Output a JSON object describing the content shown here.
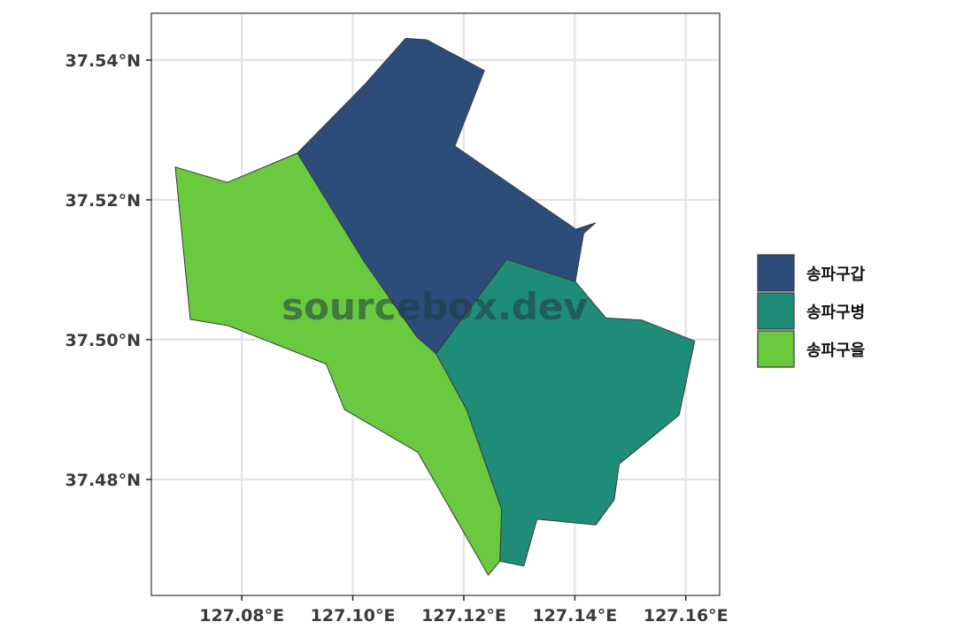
{
  "map": {
    "x_ticks": [
      {
        "value": 127.08,
        "label": "127.08°E"
      },
      {
        "value": 127.1,
        "label": "127.10°E"
      },
      {
        "value": 127.12,
        "label": "127.12°E"
      },
      {
        "value": 127.14,
        "label": "127.14°E"
      },
      {
        "value": 127.16,
        "label": "127.16°E"
      }
    ],
    "y_ticks": [
      {
        "value": 37.54,
        "label": "37.54°N"
      },
      {
        "value": 37.52,
        "label": "37.52°N"
      },
      {
        "value": 37.5,
        "label": "37.50°N"
      },
      {
        "value": 37.48,
        "label": "37.48°N"
      }
    ],
    "xlim": [
      127.0637,
      127.1661
    ],
    "ylim": [
      37.4634,
      37.5467
    ],
    "grid": true,
    "regions": [
      {
        "name": "송파구갑",
        "color": "#2c4d7a",
        "coords": [
          [
            127.09,
            37.5267
          ],
          [
            127.102,
            37.5364
          ],
          [
            127.1095,
            37.5431
          ],
          [
            127.1133,
            37.5429
          ],
          [
            127.1237,
            37.5385
          ],
          [
            127.1184,
            37.5277
          ],
          [
            127.1402,
            37.5158
          ],
          [
            127.1437,
            37.5167
          ],
          [
            127.1416,
            37.5152
          ],
          [
            127.1401,
            37.5083
          ],
          [
            127.1277,
            37.5115
          ],
          [
            127.115,
            37.498
          ],
          [
            127.1115,
            37.5004
          ],
          [
            127.102,
            37.5112
          ]
        ]
      },
      {
        "name": "송파구병",
        "color": "#1f8c78",
        "coords": [
          [
            127.115,
            37.498
          ],
          [
            127.1277,
            37.5115
          ],
          [
            127.1401,
            37.5083
          ],
          [
            127.1456,
            37.5031
          ],
          [
            127.1521,
            37.5028
          ],
          [
            127.1616,
            37.4998
          ],
          [
            127.1588,
            37.4892
          ],
          [
            127.148,
            37.4822
          ],
          [
            127.1471,
            37.4771
          ],
          [
            127.1438,
            37.4735
          ],
          [
            127.1332,
            37.4743
          ],
          [
            127.1308,
            37.4676
          ],
          [
            127.1265,
            37.4683
          ],
          [
            127.1268,
            37.4757
          ],
          [
            127.1205,
            37.49
          ]
        ]
      },
      {
        "name": "송파구을",
        "color": "#6aca3f",
        "coords": [
          [
            127.068,
            37.5247
          ],
          [
            127.0774,
            37.5225
          ],
          [
            127.09,
            37.5267
          ],
          [
            127.102,
            37.5112
          ],
          [
            127.1115,
            37.5004
          ],
          [
            127.115,
            37.498
          ],
          [
            127.1205,
            37.49
          ],
          [
            127.1268,
            37.4757
          ],
          [
            127.1265,
            37.4683
          ],
          [
            127.1244,
            37.4663
          ],
          [
            127.1117,
            37.4839
          ],
          [
            127.0985,
            37.49
          ],
          [
            127.0952,
            37.4965
          ],
          [
            127.0776,
            37.502
          ],
          [
            127.0707,
            37.5029
          ]
        ]
      }
    ]
  },
  "legend": {
    "items": [
      {
        "label": "송파구갑",
        "color": "#2c4d7a"
      },
      {
        "label": "송파구병",
        "color": "#1f8c78"
      },
      {
        "label": "송파구을",
        "color": "#6aca3f"
      }
    ]
  },
  "watermark": "sourcebox.dev"
}
